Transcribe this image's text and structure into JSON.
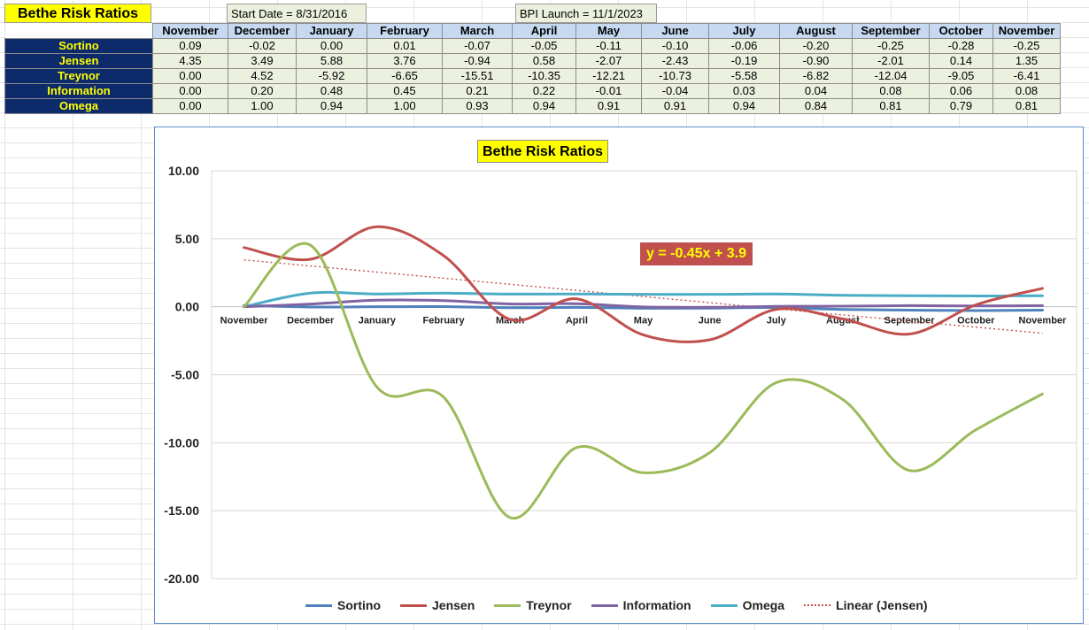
{
  "sheet": {
    "title": "Bethe Risk Ratios",
    "start_date": "Start Date = 8/31/2016",
    "launch": "BPI Launch = 11/1/2023"
  },
  "table": {
    "months": [
      "November",
      "December",
      "January",
      "February",
      "March",
      "April",
      "May",
      "June",
      "July",
      "August",
      "September",
      "October",
      "November"
    ],
    "rows": [
      {
        "label": "Sortino",
        "values": [
          "0.09",
          "-0.02",
          "0.00",
          "0.01",
          "-0.07",
          "-0.05",
          "-0.11",
          "-0.10",
          "-0.06",
          "-0.20",
          "-0.25",
          "-0.28",
          "-0.25"
        ]
      },
      {
        "label": "Jensen",
        "values": [
          "4.35",
          "3.49",
          "5.88",
          "3.76",
          "-0.94",
          "0.58",
          "-2.07",
          "-2.43",
          "-0.19",
          "-0.90",
          "-2.01",
          "0.14",
          "1.35"
        ]
      },
      {
        "label": "Treynor",
        "values": [
          "0.00",
          "4.52",
          "-5.92",
          "-6.65",
          "-15.51",
          "-10.35",
          "-12.21",
          "-10.73",
          "-5.58",
          "-6.82",
          "-12.04",
          "-9.05",
          "-6.41"
        ]
      },
      {
        "label": "Information",
        "values": [
          "0.00",
          "0.20",
          "0.48",
          "0.45",
          "0.21",
          "0.22",
          "-0.01",
          "-0.04",
          "0.03",
          "0.04",
          "0.08",
          "0.06",
          "0.08"
        ]
      },
      {
        "label": "Omega",
        "values": [
          "0.00",
          "1.00",
          "0.94",
          "1.00",
          "0.93",
          "0.94",
          "0.91",
          "0.91",
          "0.94",
          "0.84",
          "0.81",
          "0.79",
          "0.81"
        ]
      }
    ]
  },
  "chart_data": {
    "type": "line",
    "title": "Bethe Risk Ratios",
    "categories": [
      "November",
      "December",
      "January",
      "February",
      "March",
      "April",
      "May",
      "June",
      "July",
      "August",
      "September",
      "October",
      "November"
    ],
    "ylim": [
      -20,
      10
    ],
    "yticks": [
      "10.00",
      "5.00",
      "0.00",
      "-5.00",
      "-10.00",
      "-15.00",
      "-20.00"
    ],
    "ytick_values": [
      10,
      5,
      0,
      -5,
      -10,
      -15,
      -20
    ],
    "grid": "horizontal",
    "legend_position": "bottom",
    "series": [
      {
        "name": "Sortino",
        "color": "#4f81bd",
        "values": [
          0.09,
          -0.02,
          0.0,
          0.01,
          -0.07,
          -0.05,
          -0.11,
          -0.1,
          -0.06,
          -0.2,
          -0.25,
          -0.28,
          -0.25
        ]
      },
      {
        "name": "Jensen",
        "color": "#c0504d",
        "values": [
          4.35,
          3.49,
          5.88,
          3.76,
          -0.94,
          0.58,
          -2.07,
          -2.43,
          -0.19,
          -0.9,
          -2.01,
          0.14,
          1.35
        ]
      },
      {
        "name": "Treynor",
        "color": "#9bbb59",
        "values": [
          0.0,
          4.52,
          -5.92,
          -6.65,
          -15.51,
          -10.35,
          -12.21,
          -10.73,
          -5.58,
          -6.82,
          -12.04,
          -9.05,
          -6.41
        ]
      },
      {
        "name": "Information",
        "color": "#8064a2",
        "values": [
          0.0,
          0.2,
          0.48,
          0.45,
          0.21,
          0.22,
          -0.01,
          -0.04,
          0.03,
          0.04,
          0.08,
          0.06,
          0.08
        ]
      },
      {
        "name": "Omega",
        "color": "#4bacc6",
        "values": [
          0.0,
          1.0,
          0.94,
          1.0,
          0.93,
          0.94,
          0.91,
          0.91,
          0.94,
          0.84,
          0.81,
          0.79,
          0.81
        ]
      }
    ],
    "trendline": {
      "name": "Linear (Jensen)",
      "color": "#c0504d",
      "slope": -0.45,
      "intercept": 3.9,
      "equation": "y = -0.45x + 3.9"
    }
  }
}
